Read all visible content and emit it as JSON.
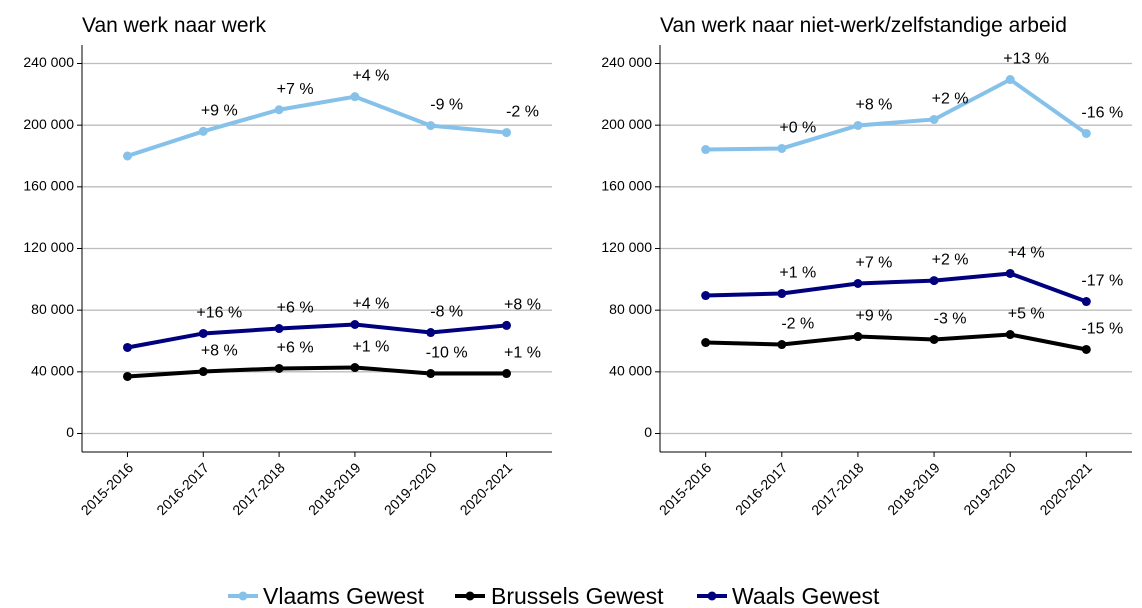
{
  "chart_data": [
    {
      "type": "line",
      "title": "Van werk naar werk",
      "categories": [
        "2015-2016",
        "2016-2017",
        "2017-2018",
        "2018-2019",
        "2019-2020",
        "2020-2021"
      ],
      "ylim": [
        -12000,
        252000
      ],
      "yticks": [
        {
          "value": 0,
          "label": "0"
        },
        {
          "value": 40000,
          "label": "40 000"
        },
        {
          "value": 80000,
          "label": "80 000"
        },
        {
          "value": 120000,
          "label": "120 000"
        },
        {
          "value": 160000,
          "label": "160 000"
        },
        {
          "value": 200000,
          "label": "200 000"
        },
        {
          "value": 240000,
          "label": "240 000"
        }
      ],
      "grid": true,
      "series": [
        {
          "name": "Vlaams Gewest",
          "color": "#85c1e9",
          "values": [
            180000,
            196000,
            210000,
            218500,
            199700,
            195200
          ],
          "annotations": [
            null,
            "+9 %",
            "+7 %",
            "+4 %",
            "-9 %",
            "-2 %"
          ]
        },
        {
          "name": "Brussels Gewest",
          "color": "#000000",
          "values": [
            37000,
            40200,
            42200,
            42800,
            38900,
            38900
          ],
          "annotations": [
            null,
            "+8 %",
            "+6 %",
            "+1 %",
            "-10 %",
            "+1 %"
          ]
        },
        {
          "name": "Waals Gewest",
          "color": "#00007f",
          "values": [
            55800,
            64900,
            68100,
            70700,
            65500,
            70100
          ],
          "annotations": [
            null,
            "+16 %",
            "+6 %",
            "+4 %",
            "-8 %",
            "+8 %"
          ]
        }
      ]
    },
    {
      "type": "line",
      "title": "Van werk naar niet-werk/zelfstandige arbeid",
      "categories": [
        "2015-2016",
        "2016-2017",
        "2017-2018",
        "2018-2019",
        "2019-2020",
        "2020-2021"
      ],
      "ylim": [
        -12000,
        252000
      ],
      "yticks": [
        {
          "value": 0,
          "label": "0"
        },
        {
          "value": 40000,
          "label": "40 000"
        },
        {
          "value": 80000,
          "label": "80 000"
        },
        {
          "value": 120000,
          "label": "120 000"
        },
        {
          "value": 160000,
          "label": "160 000"
        },
        {
          "value": 200000,
          "label": "200 000"
        },
        {
          "value": 240000,
          "label": "240 000"
        }
      ],
      "grid": true,
      "series": [
        {
          "name": "Vlaams Gewest",
          "color": "#85c1e9",
          "values": [
            184200,
            184900,
            199800,
            203700,
            229600,
            194600
          ],
          "annotations": [
            null,
            "+0 %",
            "+8 %",
            "+2 %",
            "+13 %",
            "-16 %"
          ]
        },
        {
          "name": "Brussels Gewest",
          "color": "#000000",
          "values": [
            59000,
            57700,
            62900,
            61000,
            64200,
            54500
          ],
          "annotations": [
            null,
            "-2 %",
            "+9 %",
            "-3 %",
            "+5 %",
            "-15 %"
          ]
        },
        {
          "name": "Waals Gewest",
          "color": "#00007f",
          "values": [
            89500,
            90800,
            97300,
            99200,
            103800,
            85600
          ],
          "annotations": [
            null,
            "+1 %",
            "+7 %",
            "+2 %",
            "+4 %",
            "-17 %"
          ]
        }
      ]
    }
  ]
}
